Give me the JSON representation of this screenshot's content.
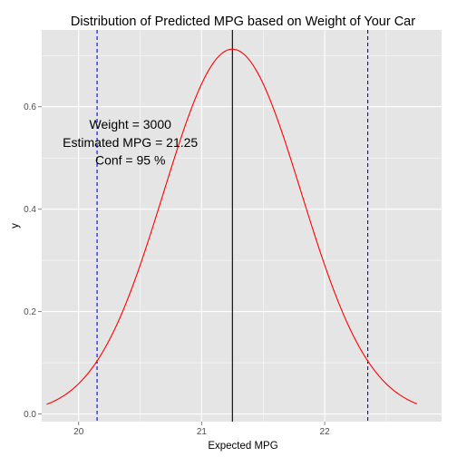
{
  "chart_data": {
    "type": "line",
    "title": "Distribution of Predicted MPG based on Weight of Your Car",
    "xlabel": "Expected MPG",
    "ylabel": "y",
    "xlim": [
      19.7,
      22.95
    ],
    "ylim": [
      -0.015,
      0.75
    ],
    "x_ticks": [
      20,
      21,
      22
    ],
    "x_tick_labels": [
      "20",
      "21",
      "22"
    ],
    "y_ticks": [
      0.0,
      0.2,
      0.4,
      0.6
    ],
    "y_tick_labels": [
      "0.0",
      "0.2",
      "0.4",
      "0.6"
    ],
    "grid": true,
    "background": "#e5e5e5",
    "grid_color": "#ffffff",
    "density_curve": {
      "color": "#ff0000",
      "mean": 21.25,
      "sd": 0.56,
      "x_start": 19.74,
      "x_end": 22.75
    },
    "lines": {
      "center": {
        "x": 21.25,
        "color": "#000000",
        "style": "solid"
      },
      "lower": {
        "x": 20.15,
        "color": "#0000ff",
        "style": "dashed"
      },
      "upper": {
        "x": 22.35,
        "color": "#0000ff",
        "style": "dashed"
      }
    },
    "annotations": [
      {
        "text": "Weight =  3000",
        "x": 20.42,
        "y": 0.557
      },
      {
        "text": "Estimated MPG =  21.25",
        "x": 20.42,
        "y": 0.522
      },
      {
        "text": "Conf =  95  %",
        "x": 20.42,
        "y": 0.487
      }
    ]
  }
}
